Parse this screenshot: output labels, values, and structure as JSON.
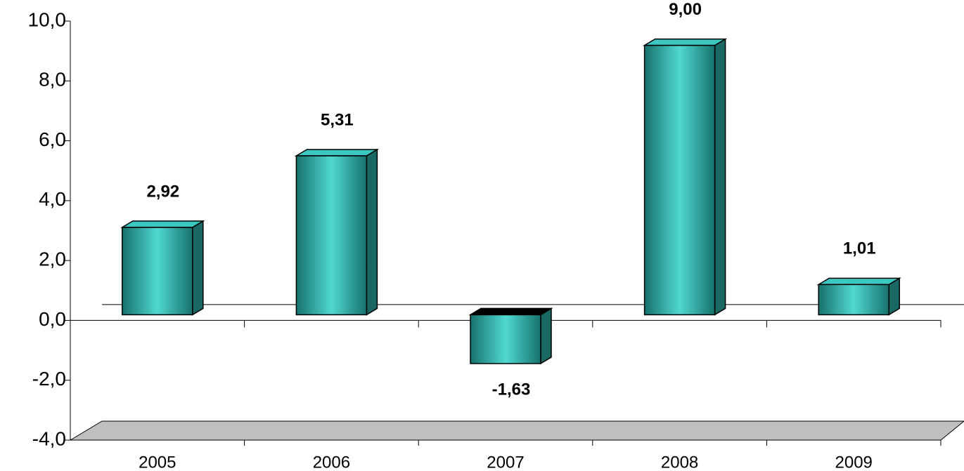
{
  "chart_data": {
    "type": "bar3d",
    "categories": [
      "2005",
      "2006",
      "2007",
      "2008",
      "2009"
    ],
    "values": [
      2.92,
      5.31,
      -1.63,
      9.0,
      1.01
    ],
    "value_labels": [
      "2,92",
      "5,31",
      "-1,63",
      "9,00",
      "1,01"
    ],
    "color": "#3cc8c0",
    "ylim": [
      -4,
      10
    ],
    "yticks": [
      {
        "value": -4,
        "label": "-4,0"
      },
      {
        "value": -2,
        "label": "-2,0"
      },
      {
        "value": 0,
        "label": "0,0"
      },
      {
        "value": 2,
        "label": "2,0"
      },
      {
        "value": 4,
        "label": "4,0"
      },
      {
        "value": 6,
        "label": "6,0"
      },
      {
        "value": 8,
        "label": "8,0"
      },
      {
        "value": 10,
        "label": "10,0"
      }
    ]
  }
}
